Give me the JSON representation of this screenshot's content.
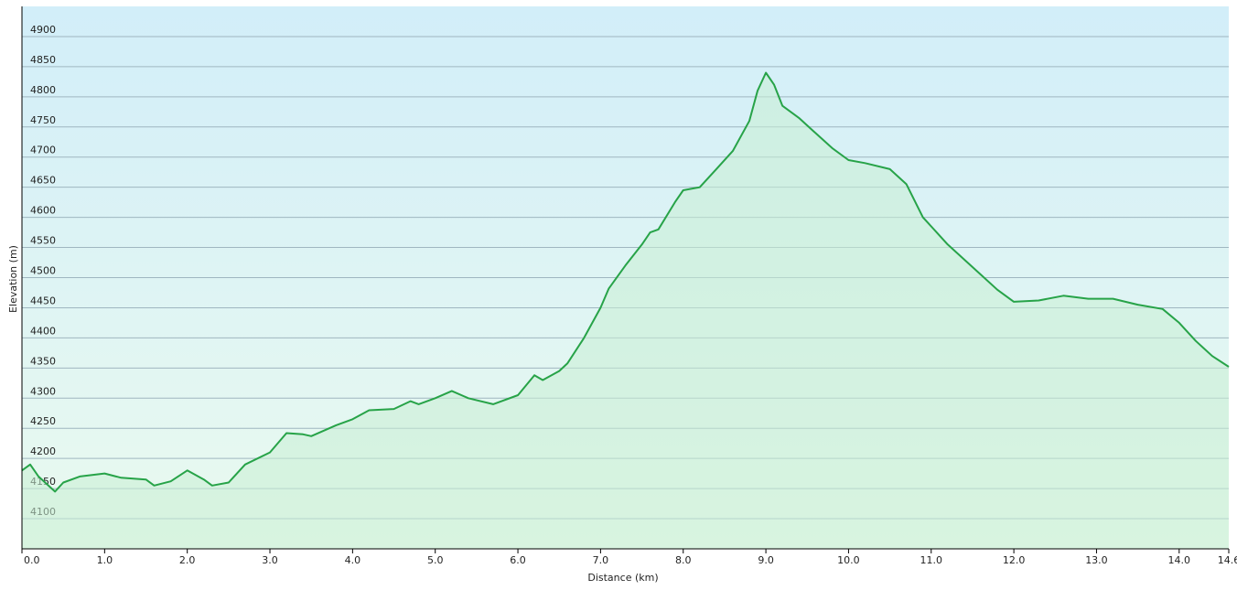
{
  "chart_data": {
    "type": "area",
    "y_label": "Elevation (m)",
    "x_label": "Distance (km)",
    "color": "#27a348",
    "fill_color": "#c9efd3",
    "grid": true,
    "xlim": [
      0,
      14.6
    ],
    "ylim": [
      4050,
      4950
    ],
    "xticks": [
      {
        "value": 0,
        "label": "0.0"
      },
      {
        "value": 1,
        "label": "1.0"
      },
      {
        "value": 2,
        "label": "2.0"
      },
      {
        "value": 3,
        "label": "3.0"
      },
      {
        "value": 4,
        "label": "4.0"
      },
      {
        "value": 5,
        "label": "5.0"
      },
      {
        "value": 6,
        "label": "6.0"
      },
      {
        "value": 7,
        "label": "7.0"
      },
      {
        "value": 8,
        "label": "8.0"
      },
      {
        "value": 9,
        "label": "9.0"
      },
      {
        "value": 10,
        "label": "10.0"
      },
      {
        "value": 11,
        "label": "11.0"
      },
      {
        "value": 12,
        "label": "12.0"
      },
      {
        "value": 13,
        "label": "13.0"
      },
      {
        "value": 14,
        "label": "14.0"
      },
      14.6
    ],
    "yticks": [
      4100,
      4150,
      4200,
      4250,
      4300,
      4350,
      4400,
      4450,
      4500,
      4550,
      4600,
      4650,
      4700,
      4750,
      4800,
      4850,
      4900
    ],
    "x": [
      0,
      0.1,
      0.2,
      0.4,
      0.5,
      0.7,
      1.0,
      1.2,
      1.5,
      1.6,
      1.8,
      2.0,
      2.2,
      2.3,
      2.5,
      2.7,
      3.0,
      3.2,
      3.4,
      3.5,
      3.8,
      4.0,
      4.2,
      4.5,
      4.7,
      4.8,
      5.0,
      5.2,
      5.4,
      5.7,
      6.0,
      6.2,
      6.3,
      6.5,
      6.6,
      6.8,
      7.0,
      7.1,
      7.3,
      7.5,
      7.6,
      7.7,
      7.9,
      8.0,
      8.2,
      8.4,
      8.6,
      8.8,
      8.9,
      9.0,
      9.1,
      9.2,
      9.4,
      9.6,
      9.8,
      10.0,
      10.2,
      10.5,
      10.7,
      10.9,
      11.0,
      11.2,
      11.4,
      11.6,
      11.8,
      12.0,
      12.3,
      12.6,
      12.9,
      13.2,
      13.5,
      13.8,
      14.0,
      14.2,
      14.4,
      14.6
    ],
    "values": [
      4180,
      4190,
      4170,
      4145,
      4160,
      4170,
      4175,
      4168,
      4165,
      4155,
      4162,
      4180,
      4165,
      4155,
      4160,
      4190,
      4210,
      4242,
      4240,
      4237,
      4255,
      4265,
      4280,
      4282,
      4295,
      4290,
      4300,
      4312,
      4300,
      4290,
      4305,
      4338,
      4330,
      4345,
      4358,
      4400,
      4450,
      4482,
      4520,
      4555,
      4575,
      4580,
      4625,
      4645,
      4650,
      4680,
      4710,
      4760,
      4810,
      4840,
      4820,
      4785,
      4765,
      4740,
      4715,
      4695,
      4690,
      4680,
      4655,
      4600,
      4585,
      4555,
      4530,
      4505,
      4480,
      4460,
      4462,
      4470,
      4465,
      4465,
      4455,
      4448,
      4425,
      4395,
      4370,
      4352
    ]
  }
}
